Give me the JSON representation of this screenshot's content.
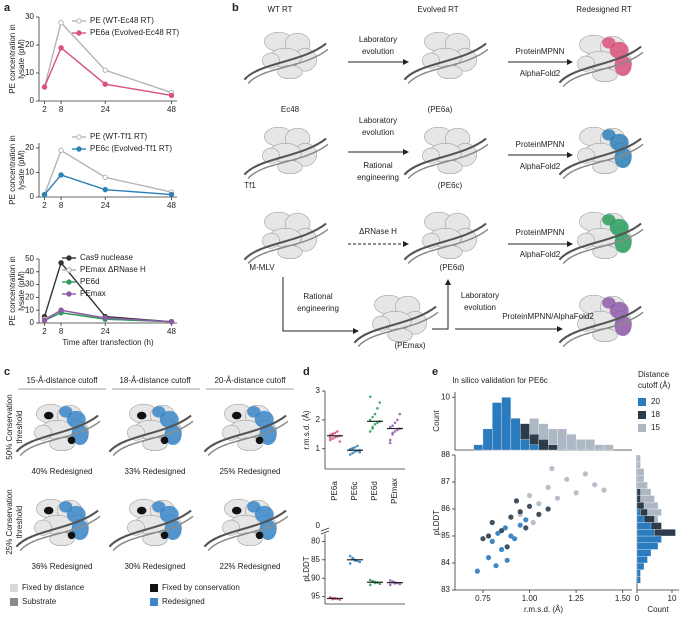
{
  "panel_labels": [
    "a",
    "b",
    "c",
    "d",
    "e"
  ],
  "chart_data": [
    {
      "type": "line",
      "ylabel": [
        "PE concentration in",
        "lysate (pM)"
      ],
      "x": [
        2,
        8,
        24,
        48
      ],
      "xlim": [
        0,
        50
      ],
      "xticks": [
        2,
        8,
        24,
        48
      ],
      "ylim": [
        0,
        30
      ],
      "yticks": [
        0,
        10,
        20,
        30
      ],
      "series": [
        {
          "name": "PE (WT-Ec48 RT)",
          "color": "#b5b5b5",
          "marker": "open",
          "values": [
            5,
            28,
            11,
            3
          ]
        },
        {
          "name": "PE6a (Evolved-Ec48 RT)",
          "color": "#d9527a",
          "marker": "filled",
          "values": [
            5,
            19,
            6,
            2
          ]
        }
      ]
    },
    {
      "type": "line",
      "ylabel": [
        "PE concentration in",
        "lysate (pM)"
      ],
      "x": [
        2,
        8,
        24,
        48
      ],
      "xlim": [
        0,
        50
      ],
      "xticks": [
        2,
        8,
        24,
        48
      ],
      "ylim": [
        0,
        22
      ],
      "yticks": [
        0,
        10,
        20
      ],
      "series": [
        {
          "name": "PE (WT-Tf1 RT)",
          "color": "#b5b5b5",
          "marker": "open",
          "values": [
            1,
            19,
            8,
            2
          ]
        },
        {
          "name": "PE6c (Evolved-Tf1 RT)",
          "color": "#2f7fb8",
          "marker": "filled",
          "values": [
            1,
            9,
            3,
            1
          ]
        }
      ]
    },
    {
      "type": "line",
      "ylabel": [
        "PE concentration in",
        "lysate (pM)"
      ],
      "xlabel": "Time after transfection (h)",
      "x": [
        2,
        8,
        24,
        48
      ],
      "xlim": [
        0,
        50
      ],
      "xticks": [
        2,
        8,
        24,
        48
      ],
      "ylim": [
        0,
        50
      ],
      "yticks": [
        0,
        10,
        20,
        30,
        40,
        50
      ],
      "series": [
        {
          "name": "Cas9 nuclease",
          "color": "#333333",
          "marker": "filled",
          "values": [
            5,
            47,
            5,
            1
          ]
        },
        {
          "name": "PEmax ΔRNase H",
          "color": "#aaaaaa",
          "marker": "open",
          "values": [
            3,
            10,
            3,
            1
          ]
        },
        {
          "name": "PE6d",
          "color": "#2a9d5c",
          "marker": "filled",
          "values": [
            2,
            8,
            3,
            1
          ]
        },
        {
          "name": "PEmax",
          "color": "#8e5aa8",
          "marker": "filled",
          "values": [
            2,
            10,
            4,
            1
          ]
        }
      ]
    },
    {
      "type": "strip",
      "ylabel": "r.m.s.d. (Å)",
      "categories": [
        "PE6a",
        "PE6c",
        "PE6d",
        "PEmax"
      ],
      "colors": [
        "#d9527a",
        "#2f7fb8",
        "#2a9d5c",
        "#8e5aa8"
      ],
      "ylim": [
        0.3,
        3
      ],
      "yticks": [
        1,
        2,
        3
      ],
      "values": [
        [
          1.3,
          1.35,
          1.4,
          1.42,
          1.45,
          1.48,
          1.5,
          1.55,
          1.6,
          1.25,
          1.38,
          1.52
        ],
        [
          0.8,
          0.85,
          0.9,
          0.93,
          0.95,
          0.98,
          1.0,
          1.05,
          1.1,
          0.88,
          0.96,
          1.02
        ],
        [
          1.6,
          1.75,
          1.85,
          1.9,
          1.95,
          2.0,
          2.1,
          2.2,
          2.4,
          2.6,
          2.8,
          1.7
        ],
        [
          1.3,
          1.5,
          1.6,
          1.65,
          1.7,
          1.75,
          1.8,
          1.9,
          2.0,
          2.2,
          1.2,
          1.55
        ]
      ],
      "medians": [
        1.45,
        0.95,
        1.95,
        1.7
      ]
    },
    {
      "type": "strip",
      "ylabel": "pLDDT",
      "break_label": "0",
      "invert_y": true,
      "colors": [
        "#d9527a",
        "#2f7fb8",
        "#2a9d5c",
        "#8e5aa8"
      ],
      "ylim": [
        78,
        97
      ],
      "yticks": [
        80,
        85,
        90,
        95
      ],
      "values": [
        [
          95.2,
          95.4,
          95.5,
          95.6,
          95.8,
          95.3,
          95.7,
          95.5
        ],
        [
          84,
          84.5,
          85,
          85.3,
          85.6,
          86,
          84.8,
          85.2
        ],
        [
          90.5,
          90.8,
          91,
          91.2,
          91.5,
          91.8,
          90.9,
          91.3
        ],
        [
          90.6,
          90.9,
          91.1,
          91.3,
          91.6,
          91.8,
          91,
          91.4
        ]
      ],
      "medians": [
        95.5,
        85,
        91.1,
        91.2
      ]
    },
    {
      "type": "scatter",
      "title": "In silico validation for PE6c",
      "xlabel": "r.m.s.d. (Å)",
      "ylabel": "pLDDT",
      "legend_title": [
        "Distance",
        "cutoff (Å)"
      ],
      "xlim": [
        0.6,
        1.55
      ],
      "xticks": [
        0.75,
        {
          "value": 1,
          "label": "1.00"
        },
        1.25,
        {
          "value": 1.5,
          "label": "1.50"
        }
      ],
      "ylim": [
        83,
        88
      ],
      "yticks": [
        83,
        84,
        85,
        86,
        87,
        88
      ],
      "series": [
        {
          "name": "20",
          "color": "#2b7bbf",
          "x": [
            0.72,
            0.78,
            0.8,
            0.83,
            0.85,
            0.87,
            0.9,
            0.92,
            0.95,
            0.98,
            0.82,
            0.88
          ],
          "values": [
            83.7,
            84.2,
            84.8,
            85.1,
            84.5,
            85.3,
            85.0,
            84.9,
            85.4,
            85.6,
            83.9,
            84.1
          ]
        },
        {
          "name": "18",
          "color": "#2d3c4b",
          "x": [
            0.75,
            0.8,
            0.85,
            0.9,
            0.95,
            1.0,
            1.05,
            0.88,
            0.93,
            0.78,
            1.1,
            0.98
          ],
          "values": [
            84.9,
            85.5,
            85.2,
            85.7,
            85.9,
            86.1,
            85.8,
            84.6,
            86.3,
            85.0,
            86.0,
            85.3
          ]
        },
        {
          "name": "15",
          "color": "#aeb8c4",
          "x": [
            0.95,
            1.0,
            1.05,
            1.1,
            1.15,
            1.2,
            1.25,
            1.3,
            1.35,
            1.02,
            1.12,
            1.4
          ],
          "values": [
            85.8,
            86.5,
            86.2,
            86.8,
            86.4,
            87.1,
            86.6,
            87.3,
            86.9,
            85.5,
            87.5,
            86.7
          ]
        }
      ]
    },
    {
      "type": "histogram",
      "ylabel": "Count",
      "orientation": "vertical",
      "xlim": [
        0.6,
        1.55
      ],
      "ylim": [
        0,
        11
      ],
      "yticks": [
        10
      ],
      "bins": [
        0.7,
        0.75,
        0.8,
        0.85,
        0.9,
        0.95,
        1.0,
        1.05,
        1.1,
        1.15,
        1.2,
        1.25,
        1.3,
        1.35,
        1.4,
        1.45
      ],
      "series": [
        {
          "color": "#aeb8c4",
          "values": [
            0,
            0,
            1,
            2,
            3,
            5,
            6,
            5,
            4,
            4,
            3,
            2,
            2,
            1,
            1
          ]
        },
        {
          "color": "#2d3c4b",
          "values": [
            0,
            2,
            5,
            6,
            6,
            5,
            3,
            2,
            1,
            0,
            0,
            0,
            0,
            0,
            0
          ]
        },
        {
          "color": "#2b7bbf",
          "values": [
            1,
            4,
            9,
            10,
            6,
            2,
            1,
            0,
            0,
            0,
            0,
            0,
            0,
            0,
            0
          ]
        }
      ]
    },
    {
      "type": "histogram",
      "xlabel": "Count",
      "orientation": "horizontal",
      "xlim": [
        0,
        12
      ],
      "xticks": [
        0,
        10
      ],
      "ylim": [
        83,
        88
      ],
      "bins": [
        83,
        83.25,
        83.5,
        83.75,
        84,
        84.25,
        84.5,
        84.75,
        85,
        85.25,
        85.5,
        85.75,
        86,
        86.25,
        86.5,
        86.75,
        87,
        87.25,
        87.5,
        87.75,
        88
      ],
      "series": [
        {
          "color": "#aeb8c4",
          "values": [
            0,
            0,
            0,
            0,
            1,
            1,
            2,
            3,
            4,
            5,
            6,
            7,
            6,
            5,
            4,
            3,
            2,
            2,
            1,
            1
          ]
        },
        {
          "color": "#2d3c4b",
          "values": [
            0,
            0,
            1,
            1,
            2,
            3,
            4,
            6,
            11,
            7,
            5,
            3,
            2,
            1,
            1,
            0,
            0,
            0,
            0,
            0
          ]
        },
        {
          "color": "#2b7bbf",
          "values": [
            0,
            1,
            1,
            2,
            3,
            4,
            6,
            7,
            5,
            4,
            2,
            1,
            0,
            0,
            0,
            0,
            0,
            0,
            0,
            0
          ]
        }
      ]
    }
  ],
  "schematic": {
    "labels": [
      "WT RT",
      "Evolved RT",
      "Redesigned RT",
      "Laboratory",
      "evolution",
      "ProteinMPNN",
      "AlphaFold2",
      "Ec48",
      "(PE6a)",
      "Laboratory",
      "evolution",
      "Rational",
      "engineering",
      "ProteinMPNN",
      "AlphaFold2",
      "Tf1",
      "(PE6c)",
      "ΔRNase H",
      "ProteinMPNN",
      "AlphaFold2",
      "M-MLV",
      "(PE6d)",
      "Rational",
      "engineering",
      "Laboratory",
      "evolution",
      "(PEmax)",
      "ProteinMPNN/AlphaFold2"
    ]
  },
  "grid_panel": {
    "columns": [
      "15-Å-distance cutoff",
      "18-Å-distance cutoff",
      "20-Å-distance cutoff"
    ],
    "rows": [
      [
        "50% Conservation",
        "threshold"
      ],
      [
        "25% Conservation",
        "threshold"
      ]
    ],
    "captions": [
      [
        "40% Redesigned",
        "33% Redesigned",
        "25% Redesigned"
      ],
      [
        "36% Redesigned",
        "30% Redesigned",
        "22% Redesigned"
      ]
    ],
    "legend": [
      {
        "label": "Fixed by distance",
        "color": "#d9d9d9"
      },
      {
        "label": "Fixed by conservation",
        "color": "#111111"
      },
      {
        "label": "Substrate",
        "color": "#8a8a8a"
      },
      {
        "label": "Redesigned",
        "color": "#3a86c8"
      }
    ]
  }
}
